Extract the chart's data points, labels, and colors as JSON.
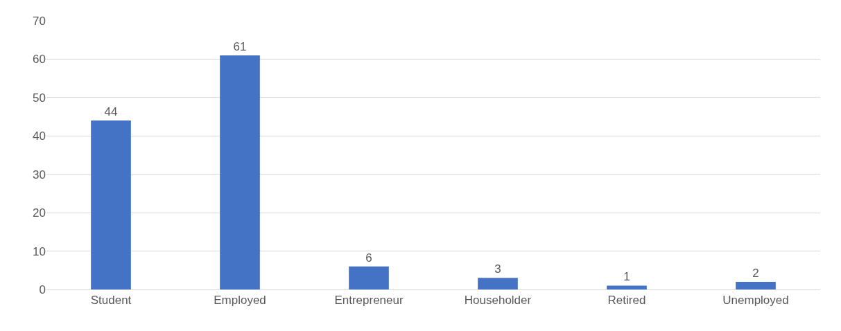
{
  "chart_data": {
    "type": "bar",
    "categories": [
      "Student",
      "Employed",
      "Entrepreneur",
      "Householder",
      "Retired",
      "Unemployed"
    ],
    "values": [
      44,
      61,
      6,
      3,
      1,
      2
    ],
    "color": "#4472c4",
    "ylim": [
      0,
      70
    ],
    "yticks": [
      0,
      10,
      20,
      30,
      40,
      50,
      60,
      70
    ],
    "grid": "y",
    "data_labels": true,
    "legend": false
  }
}
